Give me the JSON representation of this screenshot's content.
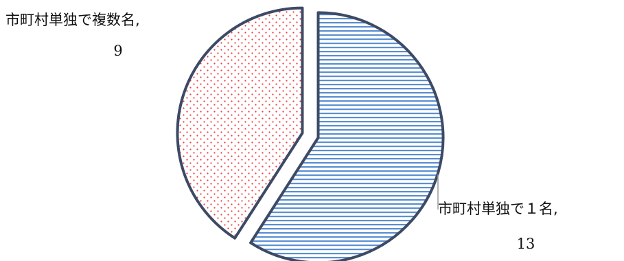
{
  "chart_data": {
    "type": "pie",
    "title": "",
    "slices": [
      {
        "label": "市町村単独で１名",
        "value": 13,
        "data_label_text": "市町村単独で１名,",
        "value_text": "13",
        "fill_pattern": "horizontal-lines",
        "pattern_color": "#5b8fd1",
        "exploded": true
      },
      {
        "label": "市町村単独で複数名",
        "value": 9,
        "data_label_text": "市町村単独で複数名,",
        "value_text": "9",
        "fill_pattern": "dots",
        "pattern_color": "#ef3b3b",
        "exploded": true
      }
    ],
    "start_angle_deg": 0,
    "direction": "clockwise",
    "slice_outline_color": "#3d4a66",
    "legend": "none"
  }
}
